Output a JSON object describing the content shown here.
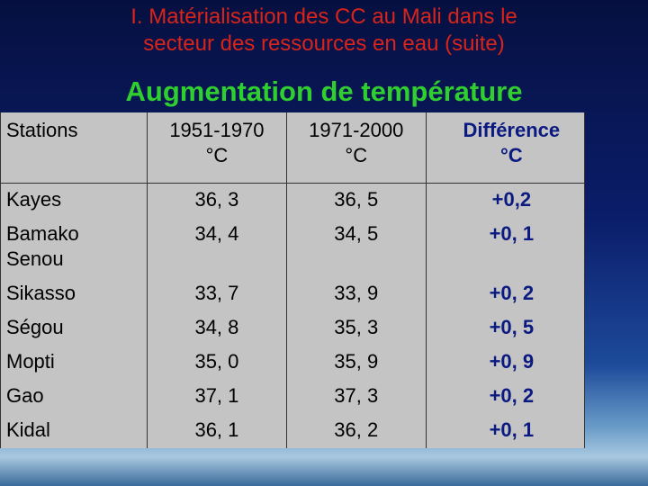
{
  "header": {
    "title_lines": [
      "I. Matérialisation des CC au Mali dans le",
      "secteur des ressources en eau (suite)"
    ],
    "subtitle": "Augmentation de température"
  },
  "table": {
    "header": [
      [
        "Stations"
      ],
      [
        "1951-1970",
        "°C"
      ],
      [
        "1971-2000",
        "°C"
      ],
      [
        "Différence",
        "°C"
      ]
    ],
    "rows": [
      [
        "Kayes",
        "36, 3",
        "36, 5",
        "+0,2"
      ],
      [
        "Bamako Senou",
        "34, 4",
        "34, 5",
        "+0, 1"
      ],
      [
        "Sikasso",
        "33, 7",
        "33, 9",
        "+0, 2"
      ],
      [
        "Ségou",
        "34, 8",
        "35, 3",
        "+0, 5"
      ],
      [
        "Mopti",
        "35, 0",
        "35, 9",
        "+0, 9"
      ],
      [
        "Gao",
        "37, 1",
        "37, 3",
        "+0, 2"
      ],
      [
        "Kidal",
        "36, 1",
        "36, 2",
        "+0, 1"
      ]
    ]
  }
}
